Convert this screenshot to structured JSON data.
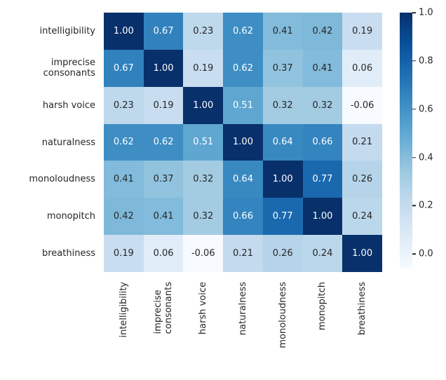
{
  "chart_data": {
    "type": "heatmap",
    "title": "",
    "xlabel": "",
    "ylabel": "",
    "row_labels": [
      "intelligibility",
      "imprecise\nconsonants",
      "harsh voice",
      "naturalness",
      "monoloudness",
      "monopitch",
      "breathiness"
    ],
    "col_labels": [
      "intelligibility",
      "imprecise\nconsonants",
      "harsh voice",
      "naturalness",
      "monoloudness",
      "monopitch",
      "breathiness"
    ],
    "matrix": [
      [
        1.0,
        0.67,
        0.23,
        0.62,
        0.41,
        0.42,
        0.19
      ],
      [
        0.67,
        1.0,
        0.19,
        0.62,
        0.37,
        0.41,
        0.06
      ],
      [
        0.23,
        0.19,
        1.0,
        0.51,
        0.32,
        0.32,
        -0.06
      ],
      [
        0.62,
        0.62,
        0.51,
        1.0,
        0.64,
        0.66,
        0.21
      ],
      [
        0.41,
        0.37,
        0.32,
        0.64,
        1.0,
        0.77,
        0.26
      ],
      [
        0.42,
        0.41,
        0.32,
        0.66,
        0.77,
        1.0,
        0.24
      ],
      [
        0.19,
        0.06,
        -0.06,
        0.21,
        0.26,
        0.24,
        1.0
      ]
    ],
    "value_decimals": 2,
    "vmin": -0.06,
    "vmax": 1.0,
    "grid": false,
    "colormap_name": "Blues",
    "colormap_anchors": [
      "#f7fbff",
      "#deebf7",
      "#c6dbef",
      "#9ecae1",
      "#6baed6",
      "#4292c6",
      "#2171b5",
      "#08519c",
      "#08306b"
    ],
    "annotation_colors": {
      "on_dark": "#ffffff",
      "on_light": "#262626"
    },
    "axis_text_color": "#262626",
    "background": "#ffffff",
    "colorbar": {
      "position": "right",
      "tick_labels": [
        "1.0",
        "0.8",
        "0.6",
        "0.4",
        "0.2",
        "0.0"
      ],
      "tick_values": [
        1.0,
        0.8,
        0.6,
        0.4,
        0.2,
        0.0
      ]
    }
  }
}
